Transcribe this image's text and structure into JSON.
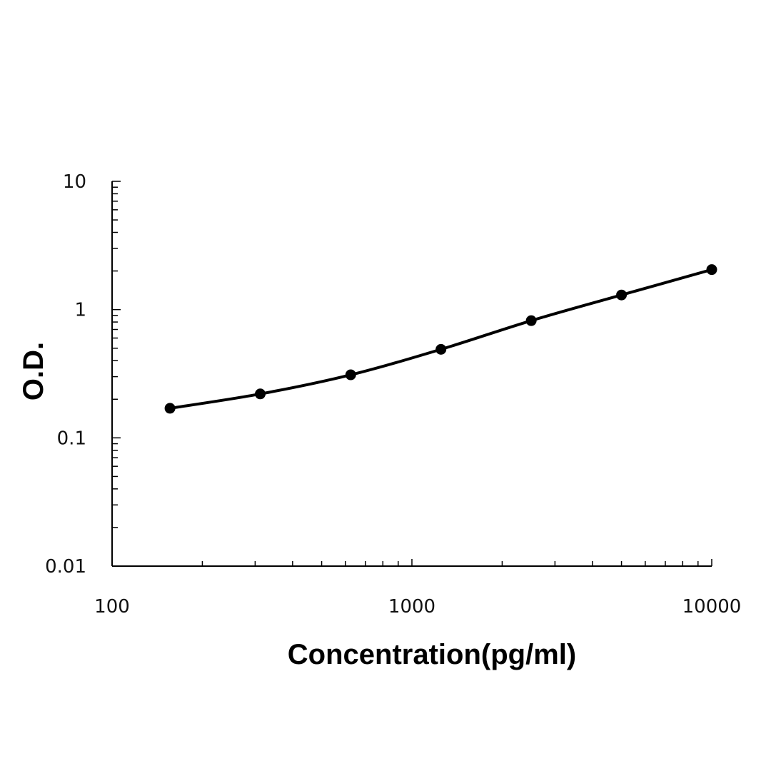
{
  "chart_data": {
    "type": "line",
    "title": "",
    "xlabel": "Concentration(pg/ml)",
    "ylabel": "O.D.",
    "x_scale": "log",
    "y_scale": "log",
    "xlim": [
      100,
      10000
    ],
    "ylim": [
      0.01,
      10
    ],
    "grid": false,
    "legend": "none",
    "x_ticks": [
      {
        "value": 100,
        "label": "100"
      },
      {
        "value": 1000,
        "label": "1000"
      },
      {
        "value": 10000,
        "label": "10000"
      }
    ],
    "y_ticks": [
      {
        "value": 0.01,
        "label": "0.01"
      },
      {
        "value": 0.1,
        "label": "0.1"
      },
      {
        "value": 1,
        "label": "1"
      },
      {
        "value": 10,
        "label": "10"
      }
    ],
    "series": [
      {
        "color": "#000000",
        "points": [
          {
            "x": 156,
            "y": 0.17
          },
          {
            "x": 312,
            "y": 0.22
          },
          {
            "x": 625,
            "y": 0.31
          },
          {
            "x": 1250,
            "y": 0.49
          },
          {
            "x": 2500,
            "y": 0.82
          },
          {
            "x": 5000,
            "y": 1.3
          },
          {
            "x": 10000,
            "y": 2.05
          }
        ]
      }
    ]
  }
}
